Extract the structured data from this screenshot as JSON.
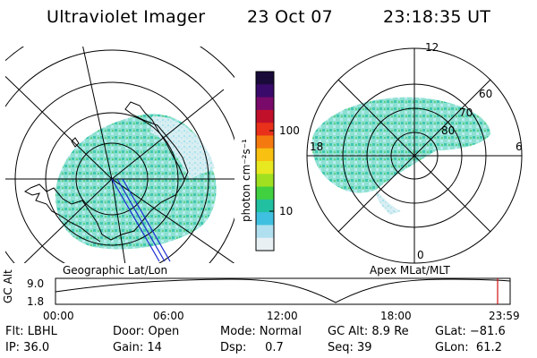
{
  "header": {
    "instrument": "Ultraviolet Imager",
    "date": "23 Oct 07",
    "time": "23:18:35 UT"
  },
  "left_map": {
    "caption": "Geographic Lat/Lon"
  },
  "right_map": {
    "caption": "Apex MLat/MLT",
    "mlt_labels": {
      "top": "12",
      "bottom": "0",
      "left": "18",
      "right": "6"
    },
    "lat_labels": [
      "60",
      "70",
      "80"
    ]
  },
  "colorbar": {
    "unit_label": "photon cm⁻²s⁻¹",
    "ticks": [
      "100",
      "10"
    ],
    "colors": [
      "#1a0a3a",
      "#3a0a6a",
      "#7a0a6a",
      "#c0102a",
      "#e8301a",
      "#f47a10",
      "#f8c010",
      "#e8e820",
      "#a0e020",
      "#40d040",
      "#20c0a0",
      "#40c0e0",
      "#b0e0f0",
      "#e8f0f4"
    ]
  },
  "timeline": {
    "axis_label": "GC Alt",
    "y_max": "9.0",
    "y_min": "1.8",
    "x_ticks": [
      "00:00",
      "06:00",
      "12:00",
      "18:00",
      "23:59"
    ]
  },
  "footer": {
    "row1": {
      "flt": "Flt: LBHL",
      "door": "Door: Open",
      "mode": "Mode: Normal",
      "gc_alt": "GC Alt: 8.9 Re",
      "glat": "GLat: −81.6"
    },
    "row2": {
      "ip": "IP: 36.0",
      "gain": "Gain: 14",
      "dsp": "Dsp:     0.7",
      "seq": "Seq: 39",
      "glon": "GLon:  61.2"
    }
  }
}
